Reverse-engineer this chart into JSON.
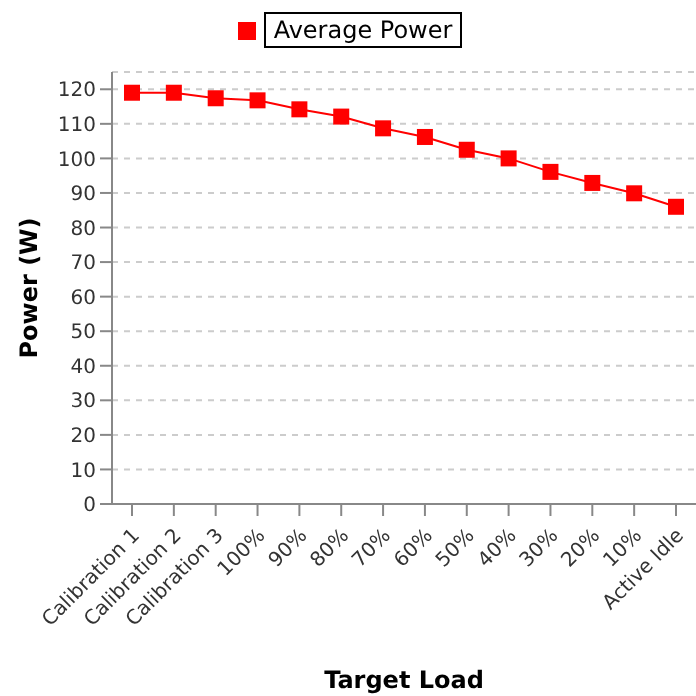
{
  "chart_data": {
    "type": "line",
    "xlabel": "Target Load",
    "ylabel": "Power (W)",
    "categories": [
      "Calibration 1",
      "Calibration 2",
      "Calibration 3",
      "100%",
      "90%",
      "80%",
      "70%",
      "60%",
      "50%",
      "40%",
      "30%",
      "20%",
      "10%",
      "Active Idle"
    ],
    "series": [
      {
        "name": "Average Power",
        "color": "#ff0000",
        "values": [
          119,
          119,
          117.4,
          116.8,
          114.2,
          112.1,
          108.7,
          106.2,
          102.5,
          100,
          96.1,
          92.9,
          89.9,
          86
        ]
      }
    ],
    "ylim": [
      0,
      125
    ],
    "yticks": [
      0,
      10,
      20,
      30,
      40,
      50,
      60,
      70,
      80,
      90,
      100,
      110,
      120
    ],
    "grid": "y",
    "legend": "top",
    "marker": "square",
    "line_style": "solid"
  }
}
